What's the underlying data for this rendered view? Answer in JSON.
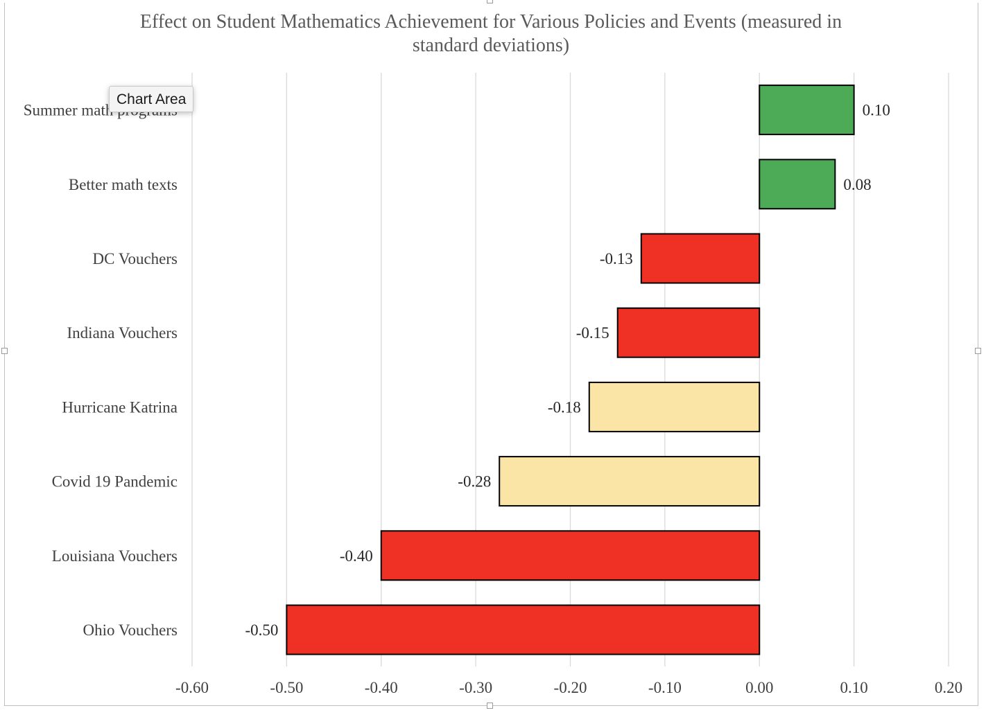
{
  "tooltip": "Chart Area",
  "chart_data": {
    "type": "bar",
    "orientation": "horizontal",
    "title_lines": [
      "Effect on Student Mathematics Achievement for Various Policies and Events (measured in",
      "standard deviations)"
    ],
    "categories": [
      "Summer math programs",
      "Better math texts",
      "DC Vouchers",
      "Indiana Vouchers",
      "Hurricane Katrina",
      "Covid 19 Pandemic",
      "Louisiana Vouchers",
      "Ohio Vouchers"
    ],
    "values": [
      0.1,
      0.08,
      -0.125,
      -0.15,
      -0.18,
      -0.275,
      -0.4,
      -0.5
    ],
    "data_labels": [
      "0.10",
      "0.08",
      "-0.13",
      "-0.15",
      "-0.18",
      "-0.28",
      "-0.40",
      "-0.50"
    ],
    "bar_colors": [
      "#4daa57",
      "#4daa57",
      "#ee3124",
      "#ee3124",
      "#fae5a6",
      "#fae5a6",
      "#ee3124",
      "#ee3124"
    ],
    "xlim": [
      -0.6,
      0.2
    ],
    "x_ticks": [
      -0.6,
      -0.5,
      -0.4,
      -0.3,
      -0.2,
      -0.1,
      0.0,
      0.1,
      0.2
    ],
    "x_tick_labels": [
      "-0.60",
      "-0.50",
      "-0.40",
      "-0.30",
      "-0.20",
      "-0.10",
      "0.00",
      "0.10",
      "0.20"
    ],
    "xlabel": "",
    "ylabel": "",
    "grid": "vertical",
    "legend": "none"
  }
}
